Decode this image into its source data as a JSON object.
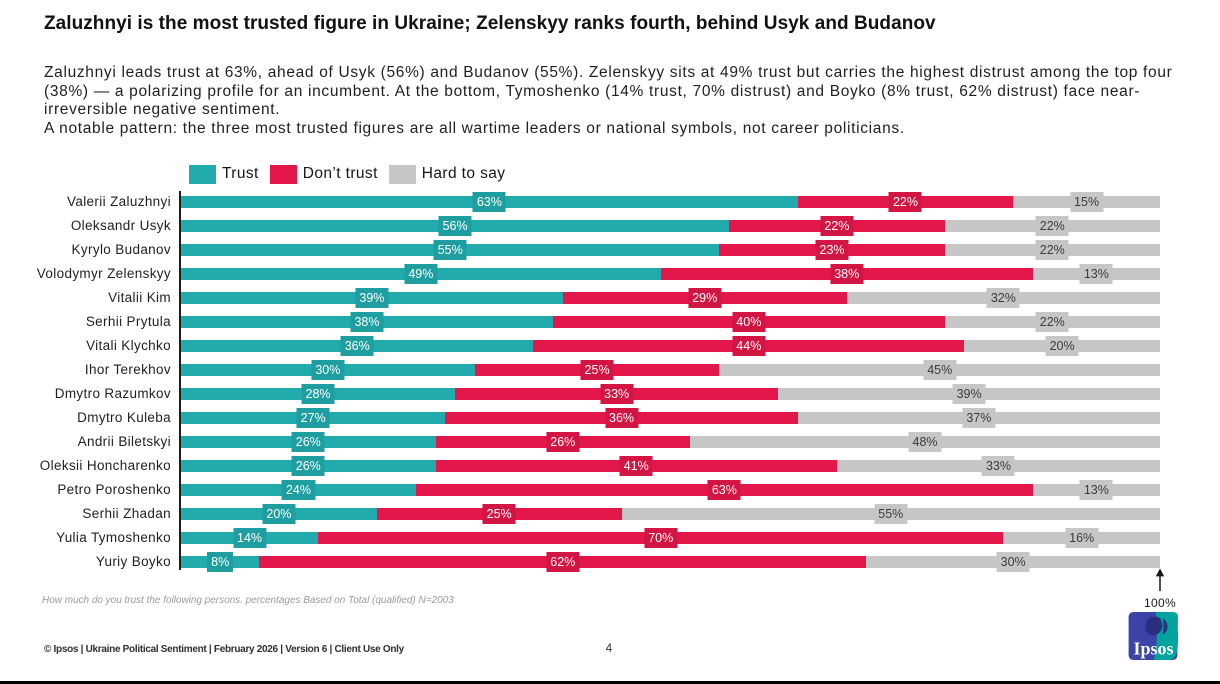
{
  "slide": {
    "title": "Zaluzhnyi is the most trusted figure in Ukraine; Zelenskyy ranks fourth, behind Usyk and Budanov",
    "summary": "Zaluzhnyi leads trust at 63%, ahead of Usyk (56%) and Budanov (55%). Zelenskyy sits at 49% trust but carries the highest distrust among the top four (38%) — a polarizing profile for an incumbent. At the bottom, Tymoshenko (14% trust, 70% distrust) and Boyko (8% trust, 62% distrust) face near-irreversible negative sentiment.",
    "summary_note": "A notable pattern: the three most trusted figures are all wartime leaders or national symbols, not career politicians.",
    "footnote": "How much do you trust the following persons. percentages Based on Total (qualified) N=2003",
    "footer": "© Ipsos | Ukraine Political Sentiment | February 2026 | Version 6 | Client Use Only",
    "page_number": "4",
    "logo_text": "Ipsos"
  },
  "colors": {
    "trust": "#21ABAD",
    "dont_trust": "#E4174A",
    "hard_to_say": "#C6C6C6",
    "bottom_bar": "#000000"
  },
  "chart_data": {
    "type": "bar",
    "orientation": "horizontal_stacked",
    "title": "",
    "xlabel": "",
    "ylabel": "",
    "xlim": [
      0,
      100
    ],
    "axis_max_label": "100%",
    "value_suffix": "%",
    "legend_position": "top",
    "categories": [
      "Valerii Zaluzhnyi",
      "Oleksandr Usyk",
      "Kyrylo Budanov",
      "Volodymyr Zelenskyy",
      "Vitalii Kim",
      "Serhii Prytula",
      "Vitali Klychko",
      "Ihor Terekhov",
      "Dmytro Razumkov",
      "Dmytro Kuleba",
      "Andrii Biletskyi",
      "Oleksii Honcharenko",
      "Petro Poroshenko",
      "Serhii Zhadan",
      "Yulia Tymoshenko",
      "Yuriy Boyko"
    ],
    "series": [
      {
        "name": "Trust",
        "color_key": "trust",
        "values": [
          63,
          56,
          55,
          49,
          39,
          38,
          36,
          30,
          28,
          27,
          26,
          26,
          24,
          20,
          14,
          8
        ]
      },
      {
        "name": "Don’t trust",
        "color_key": "dont_trust",
        "values": [
          22,
          22,
          23,
          38,
          29,
          40,
          44,
          25,
          33,
          36,
          26,
          41,
          63,
          25,
          70,
          62
        ]
      },
      {
        "name": "Hard to say",
        "color_key": "hard_to_say",
        "values": [
          15,
          22,
          22,
          13,
          32,
          22,
          20,
          45,
          39,
          37,
          48,
          33,
          13,
          55,
          16,
          30
        ]
      }
    ]
  }
}
